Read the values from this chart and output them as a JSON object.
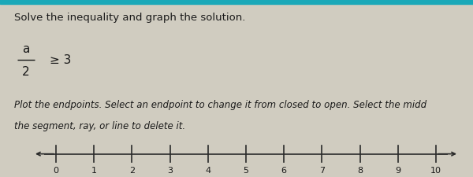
{
  "title_text": "Solve the inequality and graph the solution.",
  "equation_numerator": "a",
  "equation_denominator": "2",
  "equation_rhs": "≥ 3",
  "instruction_line1": "Plot the endpoints. Select an endpoint to change it from closed to open. Select the midd",
  "instruction_line2": "the segment, ray, or line to delete it.",
  "tick_positions": [
    0,
    1,
    2,
    3,
    4,
    5,
    6,
    7,
    8,
    9,
    10
  ],
  "tick_labels": [
    "0",
    "1",
    "2",
    "3",
    "4",
    "5",
    "6",
    "7",
    "8",
    "9",
    "10"
  ],
  "bg_color": "#d0ccc0",
  "top_bar_color": "#1aa8b8",
  "top_bar_height": 0.028,
  "text_color": "#1a1a1a",
  "title_fontsize": 9.5,
  "equation_fontsize": 11,
  "instruction_fontsize": 8.5,
  "line_color": "#2a2a2a",
  "tick_color": "#2a2a2a",
  "label_fontsize": 8,
  "fig_width": 6.0,
  "fig_height": 2.26,
  "dpi": 100
}
